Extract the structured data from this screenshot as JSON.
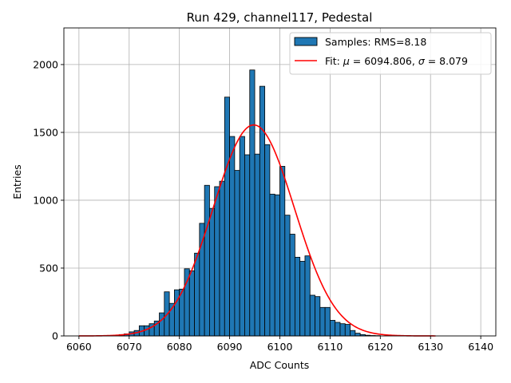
{
  "chart_data": {
    "type": "bar",
    "title": "Run 429, channel117, Pedestal",
    "xlabel": "ADC Counts",
    "ylabel": "Entries",
    "xlim": [
      6057,
      6143
    ],
    "ylim": [
      0,
      2270
    ],
    "xticks": [
      6060,
      6070,
      6080,
      6090,
      6100,
      6110,
      6120,
      6130,
      6140
    ],
    "yticks": [
      0,
      500,
      1000,
      1500,
      2000
    ],
    "grid": true,
    "legend_position": "top-right",
    "colors": {
      "bar": "#1f77b4",
      "edge": "#000000",
      "fit": "#ff0000",
      "grid": "#b0b0b0"
    },
    "histogram": {
      "name": "Samples: RMS=8.18",
      "bin_start": 6068,
      "bin_width": 1,
      "values": [
        10,
        15,
        30,
        40,
        75,
        75,
        90,
        110,
        170,
        325,
        240,
        340,
        345,
        495,
        480,
        610,
        830,
        1110,
        940,
        1100,
        1140,
        1760,
        1470,
        1220,
        1470,
        1335,
        1960,
        1340,
        1840,
        1410,
        1045,
        1040,
        1250,
        890,
        750,
        580,
        550,
        590,
        300,
        290,
        210,
        210,
        115,
        100,
        90,
        85,
        40,
        20,
        10,
        5,
        3,
        2
      ]
    },
    "fit": {
      "name_prefix": "Fit: ",
      "name_mu": "μ",
      "name_mid": " = 6094.806, ",
      "name_sigma": "σ",
      "name_end": " = 8.079",
      "mu": 6094.806,
      "sigma": 8.079,
      "amplitude": 1555,
      "x_range": [
        6060,
        6131
      ]
    }
  }
}
